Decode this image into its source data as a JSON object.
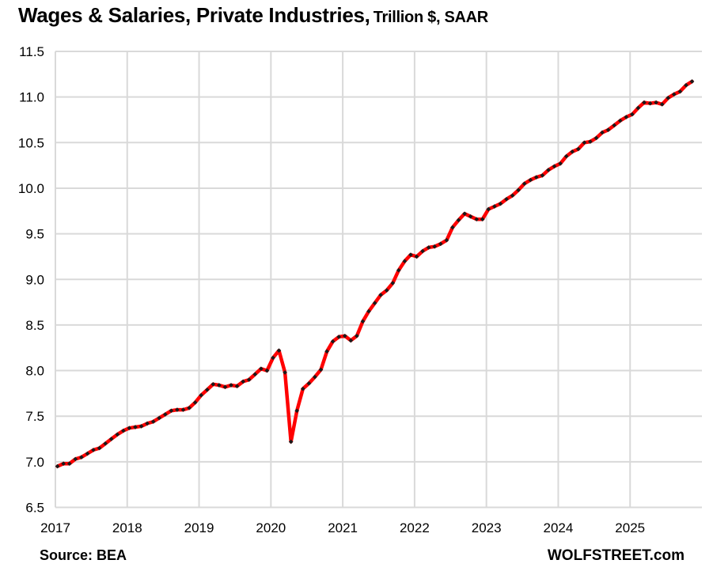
{
  "chart_data": {
    "type": "line",
    "title": "Wages & Salaries, Private Industries,",
    "subtitle": "Trillion $, SAAR",
    "xlabel": "",
    "ylabel": "",
    "ylim": [
      6.5,
      11.5
    ],
    "xlim": [
      2017,
      2026
    ],
    "y_ticks": [
      "6.5",
      "7.0",
      "7.5",
      "8.0",
      "8.5",
      "9.0",
      "9.5",
      "10.0",
      "10.5",
      "11.0",
      "11.5"
    ],
    "x_ticks": [
      "2017",
      "2018",
      "2019",
      "2020",
      "2021",
      "2022",
      "2023",
      "2024",
      "2025"
    ],
    "grid": true,
    "legend": "none",
    "frequency": "monthly",
    "start": "2017-01",
    "series": [
      {
        "name": "Wages & Salaries, Private Industries",
        "line_color": "#FF0000",
        "marker_color": "#1a1a1a",
        "values": [
          6.95,
          6.98,
          6.98,
          7.03,
          7.05,
          7.09,
          7.13,
          7.15,
          7.2,
          7.25,
          7.3,
          7.34,
          7.37,
          7.38,
          7.39,
          7.42,
          7.44,
          7.48,
          7.52,
          7.56,
          7.57,
          7.57,
          7.59,
          7.65,
          7.73,
          7.79,
          7.85,
          7.84,
          7.82,
          7.84,
          7.83,
          7.88,
          7.9,
          7.96,
          8.02,
          8.0,
          8.14,
          8.22,
          7.98,
          7.22,
          7.56,
          7.8,
          7.86,
          7.93,
          8.01,
          8.21,
          8.32,
          8.37,
          8.38,
          8.33,
          8.38,
          8.54,
          8.65,
          8.74,
          8.83,
          8.88,
          8.96,
          9.1,
          9.2,
          9.27,
          9.25,
          9.31,
          9.35,
          9.36,
          9.39,
          9.43,
          9.57,
          9.65,
          9.72,
          9.69,
          9.66,
          9.66,
          9.77,
          9.8,
          9.83,
          9.88,
          9.92,
          9.98,
          10.05,
          10.09,
          10.12,
          10.14,
          10.2,
          10.24,
          10.27,
          10.35,
          10.4,
          10.43,
          10.5,
          10.51,
          10.55,
          10.61,
          10.64,
          10.69,
          10.74,
          10.78,
          10.81,
          10.88,
          10.94,
          10.93,
          10.94,
          10.92,
          10.99,
          11.03,
          11.06,
          11.13,
          11.17
        ]
      }
    ],
    "source": "Source: BEA",
    "credit": "WOLFSTREET.com"
  },
  "colors": {
    "gridline": "#D9D9D9",
    "line": "#FF0000",
    "marker": "#1a1a1a"
  }
}
